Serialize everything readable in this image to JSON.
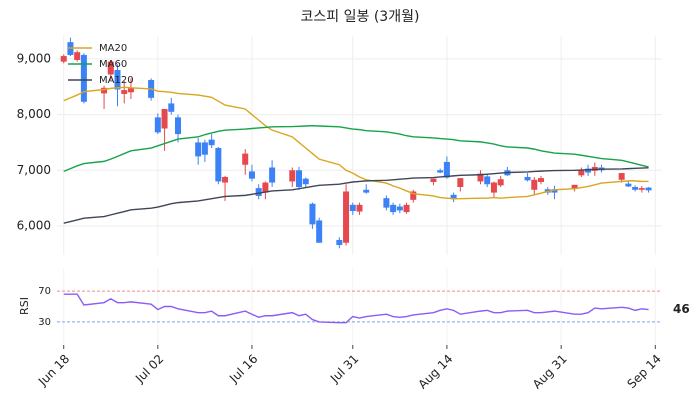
{
  "chart_data": [
    {
      "type": "candlestick",
      "title": "코스피 일봉 (3개월)",
      "x": [
        "06-18",
        "06-19",
        "06-20",
        "06-21",
        "06-24",
        "06-25",
        "06-26",
        "06-27",
        "06-28",
        "07-01",
        "07-02",
        "07-03",
        "07-04",
        "07-05",
        "07-08",
        "07-09",
        "07-10",
        "07-11",
        "07-12",
        "07-15",
        "07-16",
        "07-17",
        "07-18",
        "07-19",
        "07-22",
        "07-23",
        "07-24",
        "07-25",
        "07-26",
        "07-29",
        "07-30",
        "07-31",
        "08-01",
        "08-02",
        "08-05",
        "08-06",
        "08-07",
        "08-08",
        "08-09",
        "08-12",
        "08-13",
        "08-14",
        "08-15",
        "08-16",
        "08-19",
        "08-20",
        "08-21",
        "08-22",
        "08-23",
        "08-26",
        "08-27",
        "08-28",
        "08-29",
        "08-30",
        "09-02",
        "09-03",
        "09-04",
        "09-05",
        "09-06",
        "09-09",
        "09-10",
        "09-11",
        "09-12",
        "09-13"
      ],
      "ohlc": [
        [
          8950,
          9080,
          8920,
          9050
        ],
        [
          9300,
          9380,
          9050,
          9070
        ],
        [
          8980,
          9150,
          8950,
          9120
        ],
        [
          9070,
          9100,
          8200,
          8230
        ],
        [
          8380,
          8520,
          8100,
          8480
        ],
        [
          8720,
          8980,
          8620,
          8950
        ],
        [
          8800,
          8900,
          8150,
          8450
        ],
        [
          8370,
          8600,
          8200,
          8440
        ],
        [
          8400,
          8650,
          8280,
          8470
        ],
        [
          8620,
          8650,
          8250,
          8300
        ],
        [
          7950,
          8020,
          7650,
          7680
        ],
        [
          7750,
          8100,
          7350,
          8100
        ],
        [
          8200,
          8300,
          8000,
          8050
        ],
        [
          7950,
          8000,
          7500,
          7650
        ],
        [
          7500,
          7580,
          7100,
          7250
        ],
        [
          7500,
          7550,
          7150,
          7280
        ],
        [
          7550,
          7650,
          7400,
          7450
        ],
        [
          7400,
          7420,
          6750,
          6800
        ],
        [
          6780,
          6900,
          6450,
          6880
        ],
        [
          7100,
          7380,
          6920,
          7300
        ],
        [
          6980,
          7100,
          6800,
          6850
        ],
        [
          6680,
          6750,
          6480,
          6540
        ],
        [
          6600,
          6800,
          6480,
          6780
        ],
        [
          7050,
          7180,
          6700,
          6780
        ],
        [
          6800,
          7050,
          6700,
          7000
        ],
        [
          7000,
          7060,
          6650,
          6700
        ],
        [
          6850,
          6870,
          6700,
          6750
        ],
        [
          6400,
          6420,
          5950,
          6030
        ],
        [
          6100,
          6150,
          5700,
          5700
        ],
        [
          5750,
          5800,
          5600,
          5660
        ],
        [
          5700,
          6750,
          5650,
          6620
        ],
        [
          6380,
          6420,
          6200,
          6270
        ],
        [
          6260,
          6420,
          6200,
          6380
        ],
        [
          6650,
          6750,
          6580,
          6600
        ],
        [
          6500,
          6550,
          6280,
          6330
        ],
        [
          6380,
          6420,
          6200,
          6250
        ],
        [
          6350,
          6400,
          6230,
          6280
        ],
        [
          6250,
          6420,
          6220,
          6380
        ],
        [
          6470,
          6650,
          6420,
          6620
        ],
        [
          6790,
          6850,
          6730,
          6850
        ],
        [
          7000,
          7030,
          6950,
          6960
        ],
        [
          7150,
          7250,
          6850,
          6870
        ],
        [
          6560,
          6600,
          6430,
          6480
        ],
        [
          6700,
          6850,
          6620,
          6860
        ],
        [
          6800,
          7000,
          6750,
          6940
        ],
        [
          6890,
          6940,
          6700,
          6750
        ],
        [
          6600,
          6800,
          6500,
          6780
        ],
        [
          6730,
          6900,
          6700,
          6840
        ],
        [
          7000,
          7060,
          6900,
          6910
        ],
        [
          6880,
          6950,
          6800,
          6820
        ],
        [
          6650,
          6880,
          6550,
          6830
        ],
        [
          6790,
          6900,
          6750,
          6860
        ],
        [
          6660,
          6700,
          6560,
          6600
        ],
        [
          6660,
          6720,
          6480,
          6600
        ],
        [
          6670,
          6720,
          6620,
          6740
        ],
        [
          6910,
          7050,
          6880,
          7000
        ],
        [
          7030,
          7100,
          6900,
          6960
        ],
        [
          6990,
          7140,
          6900,
          7060
        ],
        [
          7050,
          7100,
          6960,
          7000
        ],
        [
          6830,
          6950,
          6780,
          6950
        ],
        [
          6760,
          6800,
          6700,
          6710
        ],
        [
          6700,
          6730,
          6620,
          6650
        ],
        [
          6650,
          6720,
          6600,
          6680
        ],
        [
          6690,
          6700,
          6600,
          6640
        ]
      ],
      "up_color": "#e5484d",
      "down_color": "#3b82f6",
      "series": [
        {
          "name": "MA20",
          "color": "#daa520",
          "values": [
            8250,
            8300,
            8350,
            8410,
            8450,
            8470,
            8480,
            8490,
            8480,
            8460,
            8420,
            8410,
            8400,
            8380,
            8350,
            8330,
            8310,
            8240,
            8170,
            8100,
            8000,
            7900,
            7800,
            7720,
            7600,
            7500,
            7400,
            7300,
            7200,
            7100,
            7000,
            6950,
            6880,
            6830,
            6770,
            6720,
            6680,
            6630,
            6580,
            6540,
            6510,
            6500,
            6490,
            6490,
            6500,
            6500,
            6510,
            6500,
            6510,
            6530,
            6560,
            6590,
            6620,
            6650,
            6670,
            6690,
            6710,
            6740,
            6770,
            6800,
            6810,
            6810,
            6800,
            6800
          ]
        },
        {
          "name": "MA60",
          "color": "#16a34a",
          "values": [
            6980,
            7030,
            7080,
            7120,
            7160,
            7200,
            7250,
            7300,
            7350,
            7400,
            7440,
            7480,
            7520,
            7560,
            7600,
            7640,
            7670,
            7700,
            7720,
            7740,
            7750,
            7760,
            7770,
            7780,
            7785,
            7790,
            7795,
            7800,
            7795,
            7780,
            7760,
            7740,
            7730,
            7710,
            7690,
            7670,
            7650,
            7620,
            7600,
            7580,
            7570,
            7560,
            7550,
            7530,
            7510,
            7490,
            7470,
            7440,
            7420,
            7400,
            7380,
            7350,
            7330,
            7310,
            7290,
            7270,
            7250,
            7230,
            7210,
            7180,
            7150,
            7120,
            7090,
            7060
          ]
        },
        {
          "name": "MA120",
          "color": "#3f4756",
          "values": [
            6050,
            6080,
            6110,
            6140,
            6170,
            6200,
            6230,
            6260,
            6290,
            6320,
            6340,
            6370,
            6400,
            6420,
            6450,
            6470,
            6490,
            6510,
            6530,
            6550,
            6570,
            6590,
            6610,
            6630,
            6650,
            6670,
            6690,
            6710,
            6730,
            6750,
            6770,
            6790,
            6800,
            6810,
            6820,
            6830,
            6840,
            6850,
            6860,
            6870,
            6880,
            6890,
            6900,
            6910,
            6920,
            6930,
            6940,
            6950,
            6960,
            6970,
            6980,
            6985,
            6990,
            6995,
            7000,
            7005,
            7010,
            7015,
            7020,
            7025,
            7030,
            7035,
            7040,
            7045
          ]
        }
      ],
      "xlim": [
        "06-17",
        "09-15"
      ],
      "xticks": [
        {
          "value": "06-18",
          "label": "Jun 18"
        },
        {
          "value": "07-02",
          "label": "Jul 02"
        },
        {
          "value": "07-16",
          "label": "Jul 16"
        },
        {
          "value": "07-31",
          "label": "Jul 31"
        },
        {
          "value": "08-14",
          "label": "Aug 14"
        },
        {
          "value": "08-31",
          "label": "Aug 31"
        },
        {
          "value": "09-14",
          "label": "Sep 14"
        }
      ],
      "ylim": [
        5480,
        9410
      ],
      "yticks": [
        {
          "value": 6000,
          "label": "6,000"
        },
        {
          "value": 7000,
          "label": "7,000"
        },
        {
          "value": 8000,
          "label": "8,000"
        },
        {
          "value": 9000,
          "label": "9,000"
        }
      ],
      "grid": true,
      "legend": "upper left"
    },
    {
      "type": "line",
      "ylabel": "RSI",
      "color": "#8b5cf6",
      "values": [
        66,
        66,
        66,
        52,
        55,
        60,
        55,
        55,
        56,
        53,
        46,
        50,
        50,
        47,
        42,
        42,
        44,
        38,
        38,
        44,
        40,
        36,
        38,
        38,
        42,
        38,
        40,
        33,
        30,
        29,
        29,
        37,
        35,
        37,
        40,
        37,
        36,
        37,
        39,
        42,
        45,
        47,
        45,
        40,
        44,
        45,
        42,
        42,
        44,
        45,
        42,
        42,
        43,
        44,
        40,
        40,
        42,
        48,
        47,
        49,
        48,
        45,
        47,
        46
      ],
      "ylim": [
        0,
        100
      ],
      "yticks": [
        30,
        70
      ],
      "tick_line_colors": [
        "#7aa7e0",
        "#f08a8a"
      ]
    }
  ]
}
